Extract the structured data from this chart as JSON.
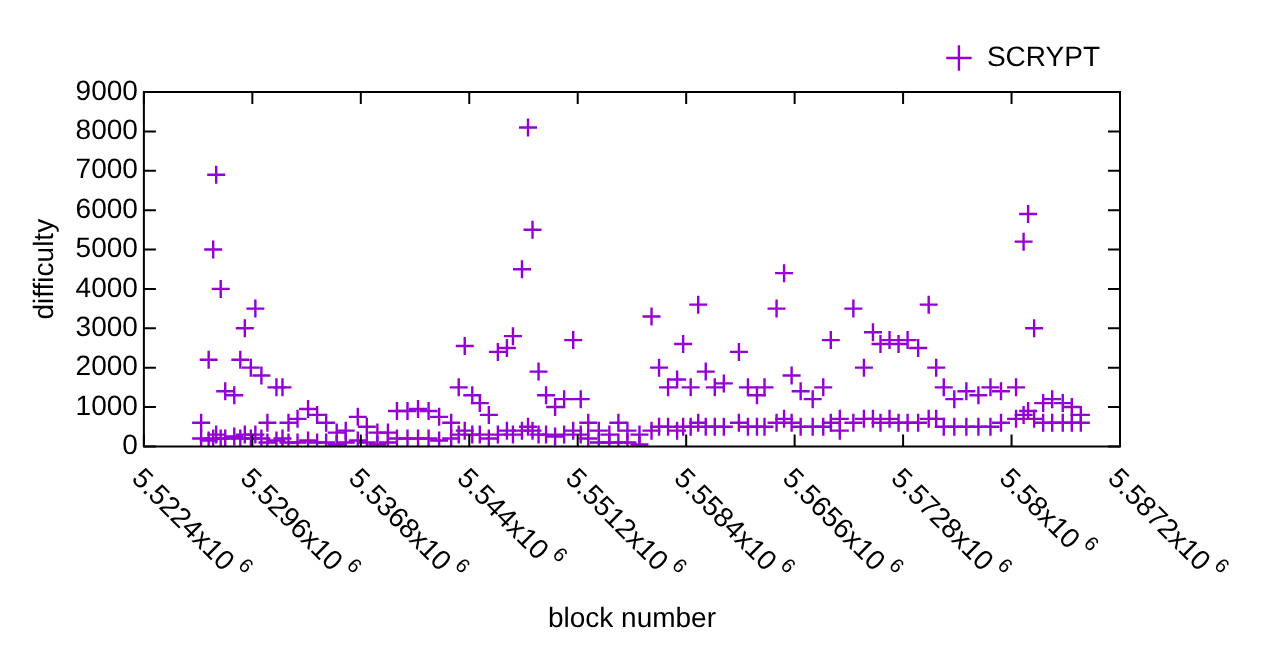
{
  "chart_data": {
    "type": "scatter",
    "xlabel": "block number",
    "ylabel": "difficulty",
    "xlim": [
      5522400,
      5587200
    ],
    "ylim": [
      0,
      9000
    ],
    "xticks": [
      {
        "value": 5522400,
        "label": "5.5224x10$^{6}$"
      },
      {
        "value": 5529600,
        "label": "5.5296x10$^{6}$"
      },
      {
        "value": 5536800,
        "label": "5.5368x10$^{6}$"
      },
      {
        "value": 5544000,
        "label": "5.544x10$^{6}$"
      },
      {
        "value": 5551200,
        "label": "5.5512x10$^{6}$"
      },
      {
        "value": 5558400,
        "label": "5.5584x10$^{6}$"
      },
      {
        "value": 5565600,
        "label": "5.5656x10$^{6}$"
      },
      {
        "value": 5572800,
        "label": "5.5728x10$^{6}$"
      },
      {
        "value": 5580000,
        "label": "5.58x10$^{6}$"
      },
      {
        "value": 5587200,
        "label": "5.5872x10$^{6}$"
      }
    ],
    "yticks": [
      0,
      1000,
      2000,
      3000,
      4000,
      5000,
      6000,
      7000,
      8000,
      9000
    ],
    "legend": "top right",
    "marker": "cross",
    "series": [
      {
        "name": "SCRYPT",
        "color": "#9400d3",
        "x": [
          5526200,
          5526200,
          5526700,
          5526700,
          5527000,
          5527000,
          5527200,
          5527200,
          5527500,
          5527500,
          5527800,
          5527800,
          5528400,
          5528400,
          5528800,
          5528800,
          5529100,
          5529100,
          5529500,
          5529500,
          5529800,
          5529800,
          5530200,
          5530200,
          5530600,
          5530600,
          5531200,
          5531200,
          5531600,
          5531600,
          5532000,
          5532000,
          5532600,
          5532600,
          5533300,
          5533300,
          5533900,
          5533900,
          5534500,
          5534500,
          5535200,
          5535200,
          5535800,
          5535800,
          5536600,
          5536600,
          5537200,
          5537200,
          5537900,
          5537900,
          5538600,
          5538600,
          5539200,
          5539200,
          5539900,
          5539900,
          5540600,
          5540600,
          5541300,
          5541300,
          5542000,
          5542000,
          5542800,
          5542800,
          5543300,
          5543300,
          5543700,
          5543700,
          5544200,
          5544200,
          5544700,
          5544700,
          5545300,
          5545300,
          5545900,
          5545900,
          5546500,
          5546500,
          5546900,
          5546900,
          5547500,
          5547500,
          5547900,
          5547900,
          5548200,
          5548200,
          5548600,
          5548600,
          5549100,
          5549100,
          5549700,
          5549700,
          5550300,
          5550300,
          5550900,
          5550900,
          5551400,
          5551400,
          5551900,
          5551900,
          5552600,
          5552600,
          5553300,
          5553300,
          5553900,
          5553900,
          5554500,
          5554500,
          5555300,
          5555300,
          5556100,
          5556100,
          5556600,
          5556600,
          5557200,
          5557200,
          5557800,
          5557800,
          5558200,
          5558200,
          5558700,
          5558700,
          5559200,
          5559200,
          5559700,
          5559700,
          5560300,
          5560300,
          5560900,
          5560900,
          5561900,
          5561900,
          5562500,
          5562500,
          5563100,
          5563100,
          5563600,
          5563600,
          5564400,
          5564400,
          5564900,
          5564900,
          5565400,
          5565400,
          5566000,
          5566000,
          5566800,
          5566800,
          5567500,
          5567500,
          5568000,
          5568000,
          5568600,
          5568600,
          5569500,
          5569500,
          5570200,
          5570200,
          5570800,
          5570800,
          5571300,
          5571300,
          5571900,
          5571900,
          5572500,
          5572500,
          5573100,
          5573100,
          5573800,
          5573800,
          5574500,
          5574500,
          5575000,
          5575000,
          5575500,
          5575500,
          5576200,
          5576200,
          5577000,
          5577000,
          5577800,
          5577800,
          5578600,
          5578600,
          5579300,
          5579300,
          5580300,
          5580300,
          5580800,
          5580800,
          5581100,
          5581100,
          5581500,
          5581500,
          5582100,
          5582100,
          5582700,
          5582700,
          5583400,
          5583400,
          5584000,
          5584000,
          5584600,
          5584600
        ],
        "values": [
          600,
          200,
          2200,
          150,
          5000,
          200,
          6900,
          300,
          4000,
          200,
          1400,
          200,
          1300,
          250,
          2200,
          200,
          3000,
          300,
          2000,
          200,
          3500,
          300,
          1800,
          200,
          600,
          100,
          1500,
          150,
          1500,
          200,
          600,
          100,
          700,
          100,
          950,
          150,
          800,
          100,
          600,
          100,
          350,
          50,
          400,
          100,
          750,
          150,
          500,
          100,
          350,
          50,
          350,
          100,
          900,
          200,
          900,
          200,
          950,
          200,
          900,
          200,
          750,
          150,
          600,
          200,
          1500,
          300,
          2550,
          400,
          1300,
          300,
          1100,
          300,
          800,
          200,
          2400,
          300,
          2500,
          400,
          2800,
          300,
          4500,
          400,
          8100,
          500,
          5500,
          400,
          1900,
          300,
          1300,
          300,
          1000,
          250,
          1200,
          300,
          2700,
          400,
          1200,
          300,
          600,
          200,
          400,
          100,
          300,
          100,
          600,
          100,
          400,
          100,
          300,
          50,
          3300,
          400,
          2000,
          500,
          1500,
          500,
          1700,
          400,
          2600,
          500,
          1500,
          500,
          3600,
          600,
          1900,
          500,
          1500,
          500,
          1600,
          500,
          2400,
          600,
          1500,
          500,
          1300,
          500,
          1500,
          500,
          3500,
          600,
          4400,
          700,
          1800,
          600,
          1400,
          500,
          1200,
          500,
          1500,
          500,
          2700,
          600,
          700,
          400,
          3500,
          600,
          2000,
          700,
          2900,
          700,
          2600,
          600,
          2700,
          700,
          2600,
          600,
          2700,
          600,
          2500,
          600,
          3600,
          700,
          2000,
          700,
          1500,
          500,
          1200,
          500,
          1400,
          500,
          1300,
          500,
          1500,
          500,
          1400,
          600,
          1500,
          700,
          5200,
          800,
          5900,
          900,
          3000,
          700,
          1100,
          600,
          1200,
          600,
          1100,
          600,
          1000,
          600,
          800,
          600
        ]
      }
    ]
  }
}
